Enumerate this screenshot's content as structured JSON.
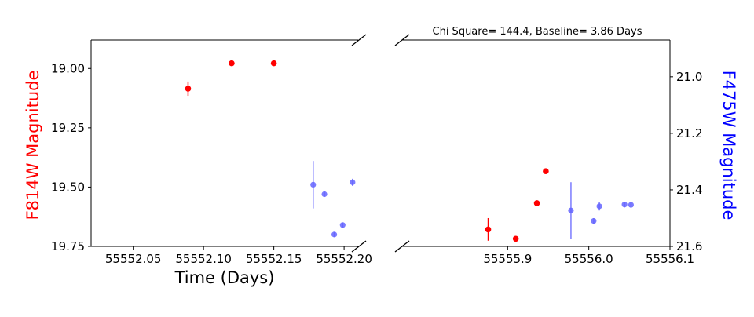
{
  "chart_data": {
    "type": "scatter",
    "title": "Chi Square= 144.4, Baseline= 3.86 Days",
    "xlabel": "Time (Days)",
    "ylabel_left": "F814W Magnitude",
    "ylabel_right": "F475W Magnitude",
    "colors": {
      "F814W": "#ff0000",
      "F475W": "#6464ff",
      "ylabel_left": "#ff0000",
      "ylabel_right": "#0000ff"
    },
    "axes": {
      "left": {
        "xlim": [
          55552.02,
          55552.21
        ],
        "ylim": [
          19.75,
          18.88
        ],
        "y_inverted": true,
        "xticks": [
          55552.05,
          55552.1,
          55552.15,
          55552.2
        ],
        "xtick_labels": [
          "55552.05",
          "55552.10",
          "55552.15",
          "55552.20"
        ],
        "yticks": [
          19.0,
          19.25,
          19.5,
          19.75
        ],
        "ytick_labels": [
          "19.00",
          "19.25",
          "19.50",
          "19.75"
        ]
      },
      "right": {
        "xlim": [
          55555.77,
          55556.1
        ],
        "ylim": [
          21.6,
          20.87
        ],
        "y_inverted": true,
        "xticks": [
          55555.9,
          55556.0,
          55556.1
        ],
        "xtick_labels": [
          "55555.9",
          "55556.0",
          "55556.1"
        ],
        "yticks": [
          21.0,
          21.2,
          21.4,
          21.6
        ],
        "ytick_labels": [
          "21.0",
          "21.2",
          "21.4",
          "21.6"
        ]
      }
    },
    "series": [
      {
        "name": "F814W",
        "axis": "left",
        "points": [
          {
            "x": 55552.089,
            "y": 19.085,
            "err": 0.03
          },
          {
            "x": 55552.12,
            "y": 18.978,
            "err": 0.006
          },
          {
            "x": 55552.15,
            "y": 18.978,
            "err": 0.006
          }
        ]
      },
      {
        "name": "F814W",
        "axis": "right",
        "points": [
          {
            "x": 55555.876,
            "y": 21.54,
            "err": 0.04
          },
          {
            "x": 55555.91,
            "y": 21.573,
            "err": 0.006
          },
          {
            "x": 55555.936,
            "y": 21.447,
            "err": 0.006
          },
          {
            "x": 55555.947,
            "y": 21.334,
            "err": 0.006
          }
        ]
      },
      {
        "name": "F475W",
        "axis": "left",
        "points": [
          {
            "x": 55552.178,
            "y": 19.49,
            "err": 0.1
          },
          {
            "x": 55552.186,
            "y": 19.53,
            "err": 0.01
          },
          {
            "x": 55552.193,
            "y": 19.7,
            "err": 0.01
          },
          {
            "x": 55552.199,
            "y": 19.66,
            "err": 0.01
          },
          {
            "x": 55552.206,
            "y": 19.48,
            "err": 0.015
          }
        ]
      },
      {
        "name": "F475W",
        "axis": "right",
        "points": [
          {
            "x": 55555.978,
            "y": 21.473,
            "err": 0.1
          },
          {
            "x": 55556.006,
            "y": 21.51,
            "err": 0.01
          },
          {
            "x": 55556.013,
            "y": 21.458,
            "err": 0.015
          },
          {
            "x": 55556.044,
            "y": 21.452,
            "err": 0.01
          },
          {
            "x": 55556.052,
            "y": 21.453,
            "err": 0.01
          }
        ]
      }
    ]
  }
}
